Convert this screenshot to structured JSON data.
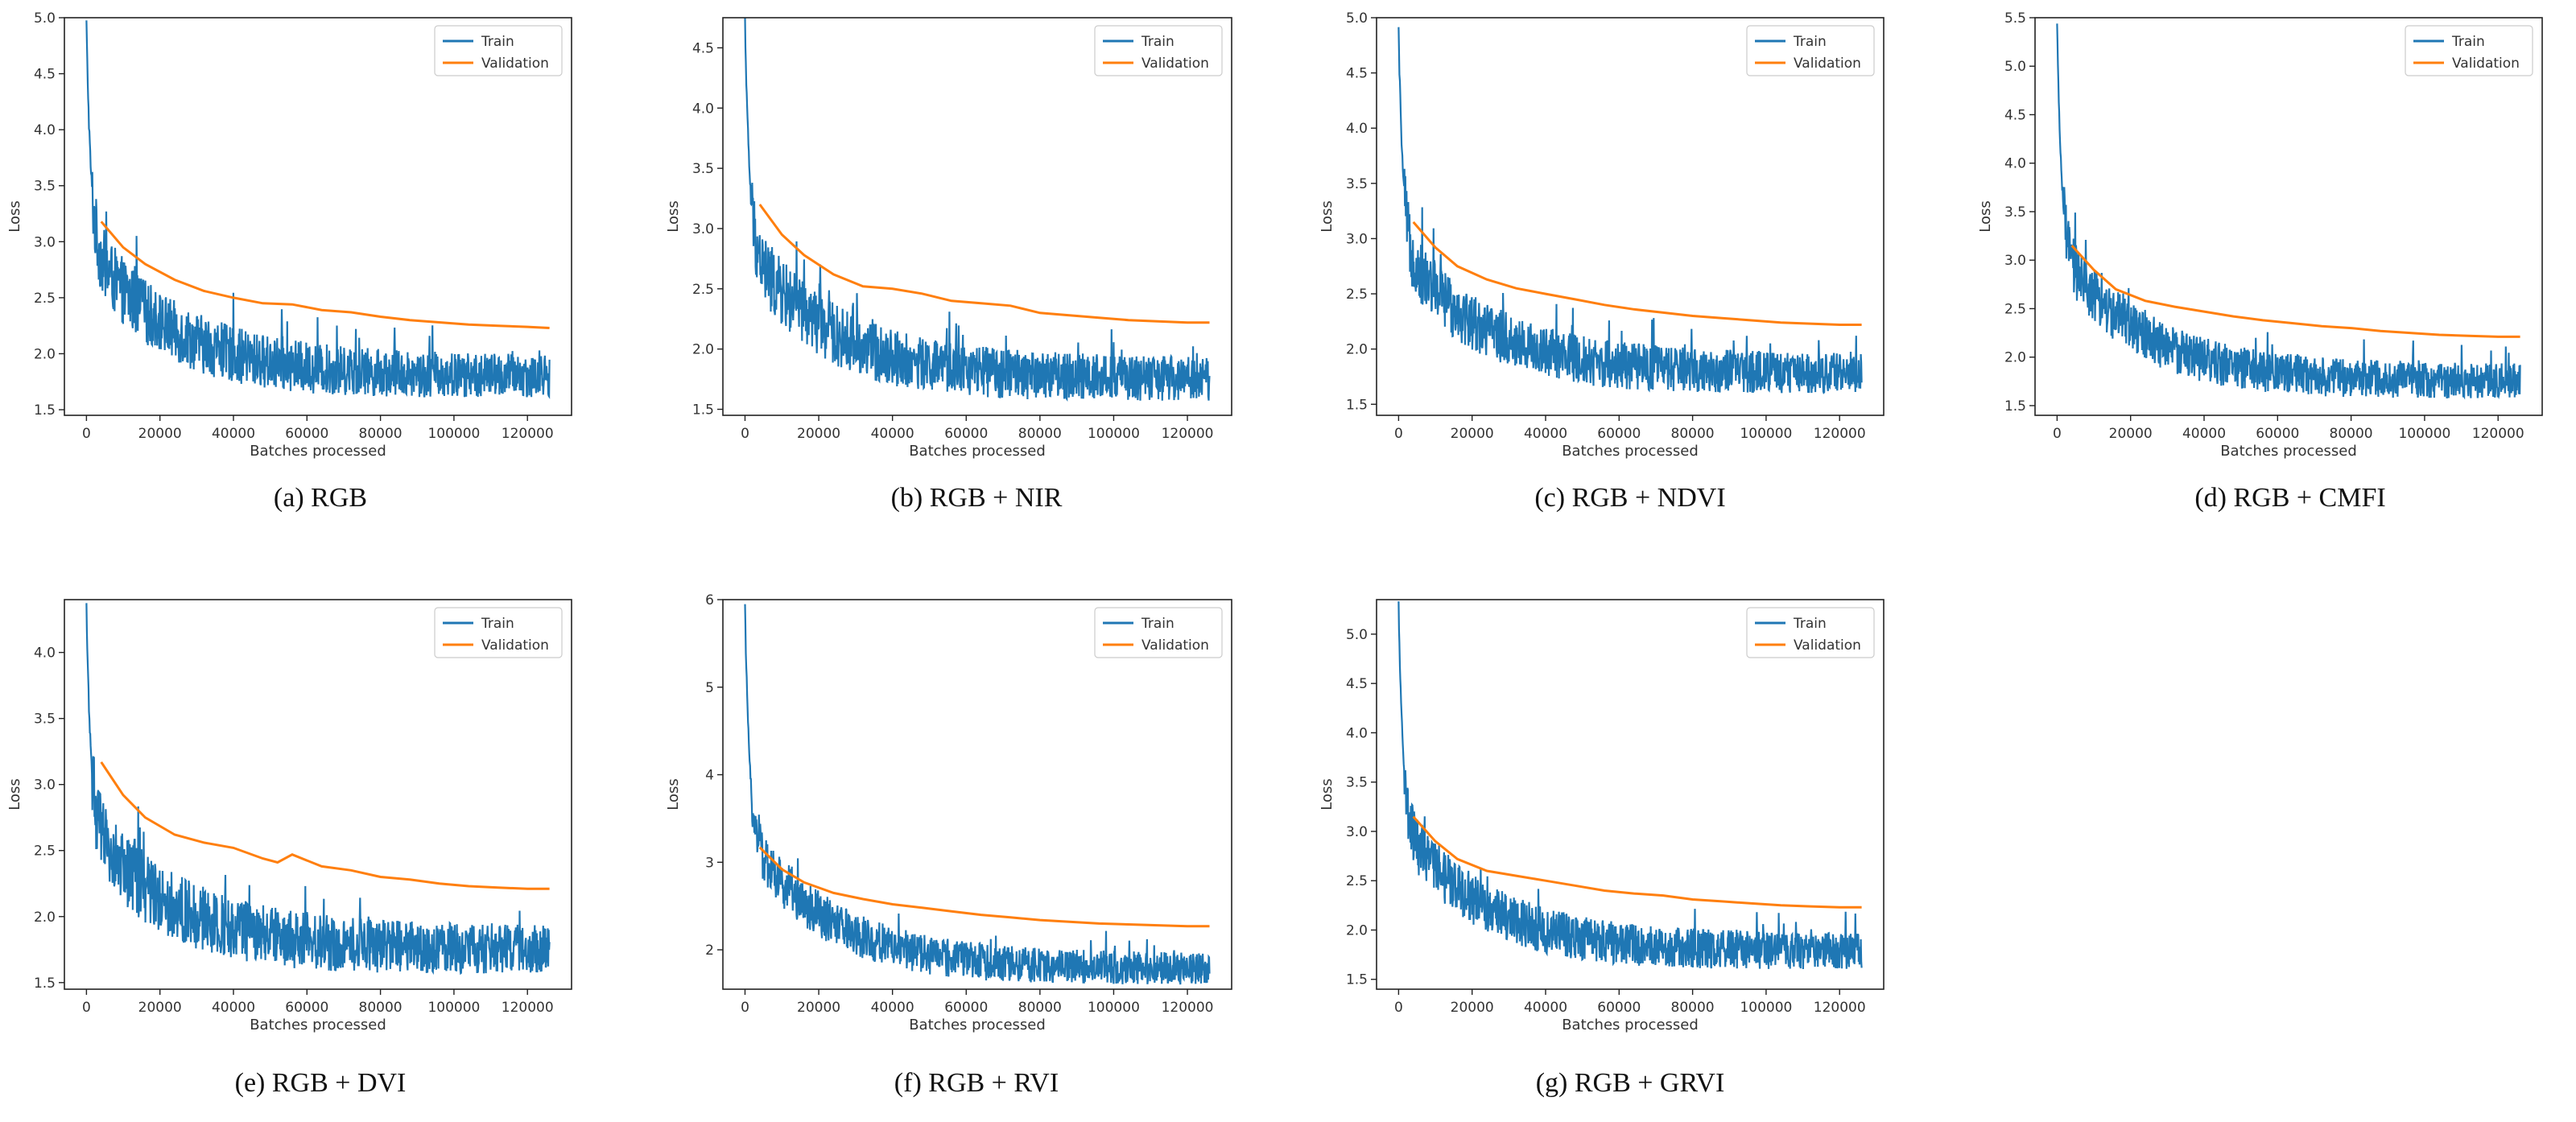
{
  "colors": {
    "train": "#1f77b4",
    "validation": "#ff7f0e",
    "axis": "#222222",
    "text": "#333333"
  },
  "chart_data": [
    {
      "type": "line",
      "caption": "(a) RGB",
      "xlabel": "Batches processed",
      "ylabel": "Loss",
      "xlim": [
        -6000,
        132000
      ],
      "ylim": [
        1.45,
        5.0
      ],
      "xticks": [
        0,
        20000,
        40000,
        60000,
        80000,
        100000,
        120000
      ],
      "xtick_labels": [
        "0",
        "20000",
        "40000",
        "60000",
        "80000",
        "100000",
        "120000"
      ],
      "yticks": [
        1.5,
        2.0,
        2.5,
        3.0,
        3.5,
        4.0,
        4.5,
        5.0
      ],
      "ytick_labels": [
        "1.5",
        "2.0",
        "2.5",
        "3.0",
        "3.5",
        "4.0",
        "4.5",
        "5.0"
      ],
      "legend": "top-right",
      "series": [
        {
          "name": "Train",
          "start": 4.95,
          "end": 1.8,
          "noise": 0.32
        },
        {
          "name": "Validation",
          "x": [
            4000,
            10000,
            16000,
            24000,
            32000,
            40000,
            48000,
            56000,
            64000,
            72000,
            80000,
            88000,
            96000,
            104000,
            112000,
            120000,
            126000
          ],
          "y": [
            3.18,
            2.95,
            2.8,
            2.66,
            2.56,
            2.5,
            2.45,
            2.44,
            2.39,
            2.37,
            2.33,
            2.3,
            2.28,
            2.26,
            2.25,
            2.24,
            2.23
          ]
        }
      ]
    },
    {
      "type": "line",
      "caption": "(b) RGB + NIR",
      "xlabel": "Batches processed",
      "ylabel": "Loss",
      "xlim": [
        -6000,
        132000
      ],
      "ylim": [
        1.45,
        4.75
      ],
      "xticks": [
        0,
        20000,
        40000,
        60000,
        80000,
        100000,
        120000
      ],
      "xtick_labels": [
        "0",
        "20000",
        "40000",
        "60000",
        "80000",
        "100000",
        "120000"
      ],
      "yticks": [
        1.5,
        2.0,
        2.5,
        3.0,
        3.5,
        4.0,
        4.5
      ],
      "ytick_labels": [
        "1.5",
        "2.0",
        "2.5",
        "3.0",
        "3.5",
        "4.0",
        "4.5"
      ],
      "legend": "top-right",
      "series": [
        {
          "name": "Train",
          "start": 4.72,
          "end": 1.75,
          "noise": 0.3
        },
        {
          "name": "Validation",
          "x": [
            4000,
            10000,
            16000,
            24000,
            32000,
            40000,
            48000,
            56000,
            64000,
            72000,
            80000,
            88000,
            96000,
            104000,
            112000,
            120000,
            126000
          ],
          "y": [
            3.2,
            2.95,
            2.78,
            2.62,
            2.52,
            2.5,
            2.46,
            2.4,
            2.38,
            2.36,
            2.3,
            2.28,
            2.26,
            2.24,
            2.23,
            2.22,
            2.22
          ]
        }
      ]
    },
    {
      "type": "line",
      "caption": "(c) RGB + NDVI",
      "xlabel": "Batches processed",
      "ylabel": "Loss",
      "xlim": [
        -6000,
        132000
      ],
      "ylim": [
        1.4,
        5.0
      ],
      "xticks": [
        0,
        20000,
        40000,
        60000,
        80000,
        100000,
        120000
      ],
      "xtick_labels": [
        "0",
        "20000",
        "40000",
        "60000",
        "80000",
        "100000",
        "120000"
      ],
      "yticks": [
        1.5,
        2.0,
        2.5,
        3.0,
        3.5,
        4.0,
        4.5,
        5.0
      ],
      "ytick_labels": [
        "1.5",
        "2.0",
        "2.5",
        "3.0",
        "3.5",
        "4.0",
        "4.5",
        "5.0"
      ],
      "legend": "top-right",
      "series": [
        {
          "name": "Train",
          "start": 4.88,
          "end": 1.78,
          "noise": 0.3
        },
        {
          "name": "Validation",
          "x": [
            4000,
            10000,
            16000,
            24000,
            32000,
            40000,
            48000,
            56000,
            64000,
            72000,
            80000,
            88000,
            96000,
            104000,
            112000,
            120000,
            126000
          ],
          "y": [
            3.15,
            2.92,
            2.75,
            2.63,
            2.55,
            2.5,
            2.45,
            2.4,
            2.36,
            2.33,
            2.3,
            2.28,
            2.26,
            2.24,
            2.23,
            2.22,
            2.22
          ]
        }
      ]
    },
    {
      "type": "line",
      "caption": "(d) RGB + CMFI",
      "xlabel": "Batches processed",
      "ylabel": "Loss",
      "xlim": [
        -6000,
        132000
      ],
      "ylim": [
        1.4,
        5.5
      ],
      "xticks": [
        0,
        20000,
        40000,
        60000,
        80000,
        100000,
        120000
      ],
      "xtick_labels": [
        "0",
        "20000",
        "40000",
        "60000",
        "80000",
        "100000",
        "120000"
      ],
      "yticks": [
        1.5,
        2.0,
        2.5,
        3.0,
        3.5,
        4.0,
        4.5,
        5.0,
        5.5
      ],
      "ytick_labels": [
        "1.5",
        "2.0",
        "2.5",
        "3.0",
        "3.5",
        "4.0",
        "4.5",
        "5.0",
        "5.5"
      ],
      "legend": "top-right",
      "series": [
        {
          "name": "Train",
          "start": 5.4,
          "end": 1.75,
          "noise": 0.3
        },
        {
          "name": "Validation",
          "x": [
            4000,
            10000,
            16000,
            24000,
            32000,
            40000,
            48000,
            56000,
            64000,
            72000,
            80000,
            88000,
            96000,
            104000,
            112000,
            120000,
            126000
          ],
          "y": [
            3.15,
            2.9,
            2.7,
            2.58,
            2.52,
            2.47,
            2.42,
            2.38,
            2.35,
            2.32,
            2.3,
            2.27,
            2.25,
            2.23,
            2.22,
            2.21,
            2.21
          ]
        }
      ]
    },
    {
      "type": "line",
      "caption": "(e) RGB + DVI",
      "xlabel": "Batches processed",
      "ylabel": "Loss",
      "xlim": [
        -6000,
        132000
      ],
      "ylim": [
        1.45,
        4.4
      ],
      "xticks": [
        0,
        20000,
        40000,
        60000,
        80000,
        100000,
        120000
      ],
      "xtick_labels": [
        "0",
        "20000",
        "40000",
        "60000",
        "80000",
        "100000",
        "120000"
      ],
      "yticks": [
        1.5,
        2.0,
        2.5,
        3.0,
        3.5,
        4.0
      ],
      "ytick_labels": [
        "1.5",
        "2.0",
        "2.5",
        "3.0",
        "3.5",
        "4.0"
      ],
      "legend": "top-right",
      "series": [
        {
          "name": "Train",
          "start": 4.33,
          "end": 1.75,
          "noise": 0.3
        },
        {
          "name": "Validation",
          "x": [
            4000,
            10000,
            16000,
            24000,
            32000,
            40000,
            48000,
            52000,
            56000,
            64000,
            72000,
            80000,
            88000,
            96000,
            104000,
            112000,
            120000,
            126000
          ],
          "y": [
            3.17,
            2.92,
            2.75,
            2.62,
            2.56,
            2.52,
            2.44,
            2.41,
            2.47,
            2.38,
            2.35,
            2.3,
            2.28,
            2.25,
            2.23,
            2.22,
            2.21,
            2.21
          ]
        }
      ]
    },
    {
      "type": "line",
      "caption": "(f) RGB + RVI",
      "xlabel": "Batches processed",
      "ylabel": "Loss",
      "xlim": [
        -6000,
        132000
      ],
      "ylim": [
        1.55,
        6.0
      ],
      "xticks": [
        0,
        20000,
        40000,
        60000,
        80000,
        100000,
        120000
      ],
      "xtick_labels": [
        "0",
        "20000",
        "40000",
        "60000",
        "80000",
        "100000",
        "120000"
      ],
      "yticks": [
        2,
        3,
        4,
        5,
        6
      ],
      "ytick_labels": [
        "2",
        "3",
        "4",
        "5",
        "6"
      ],
      "legend": "top-right",
      "series": [
        {
          "name": "Train",
          "start": 5.9,
          "end": 1.78,
          "noise": 0.3
        },
        {
          "name": "Validation",
          "x": [
            4000,
            10000,
            16000,
            24000,
            32000,
            40000,
            48000,
            56000,
            64000,
            72000,
            80000,
            88000,
            96000,
            104000,
            112000,
            120000,
            126000
          ],
          "y": [
            3.17,
            2.92,
            2.77,
            2.65,
            2.58,
            2.52,
            2.48,
            2.44,
            2.4,
            2.37,
            2.34,
            2.32,
            2.3,
            2.29,
            2.28,
            2.27,
            2.27
          ]
        }
      ]
    },
    {
      "type": "line",
      "caption": "(g) RGB + GRVI",
      "xlabel": "Batches processed",
      "ylabel": "Loss",
      "xlim": [
        -6000,
        132000
      ],
      "ylim": [
        1.4,
        5.35
      ],
      "xticks": [
        0,
        20000,
        40000,
        60000,
        80000,
        100000,
        120000
      ],
      "xtick_labels": [
        "0",
        "20000",
        "40000",
        "60000",
        "80000",
        "100000",
        "120000"
      ],
      "yticks": [
        1.5,
        2.0,
        2.5,
        3.0,
        3.5,
        4.0,
        4.5,
        5.0
      ],
      "ytick_labels": [
        "1.5",
        "2.0",
        "2.5",
        "3.0",
        "3.5",
        "4.0",
        "4.5",
        "5.0"
      ],
      "legend": "top-right",
      "series": [
        {
          "name": "Train",
          "start": 5.28,
          "end": 1.78,
          "noise": 0.3
        },
        {
          "name": "Validation",
          "x": [
            4000,
            10000,
            16000,
            24000,
            32000,
            40000,
            48000,
            56000,
            64000,
            72000,
            80000,
            88000,
            96000,
            104000,
            112000,
            120000,
            126000
          ],
          "y": [
            3.15,
            2.9,
            2.72,
            2.6,
            2.55,
            2.5,
            2.45,
            2.4,
            2.37,
            2.35,
            2.31,
            2.29,
            2.27,
            2.25,
            2.24,
            2.23,
            2.23
          ]
        }
      ]
    }
  ]
}
